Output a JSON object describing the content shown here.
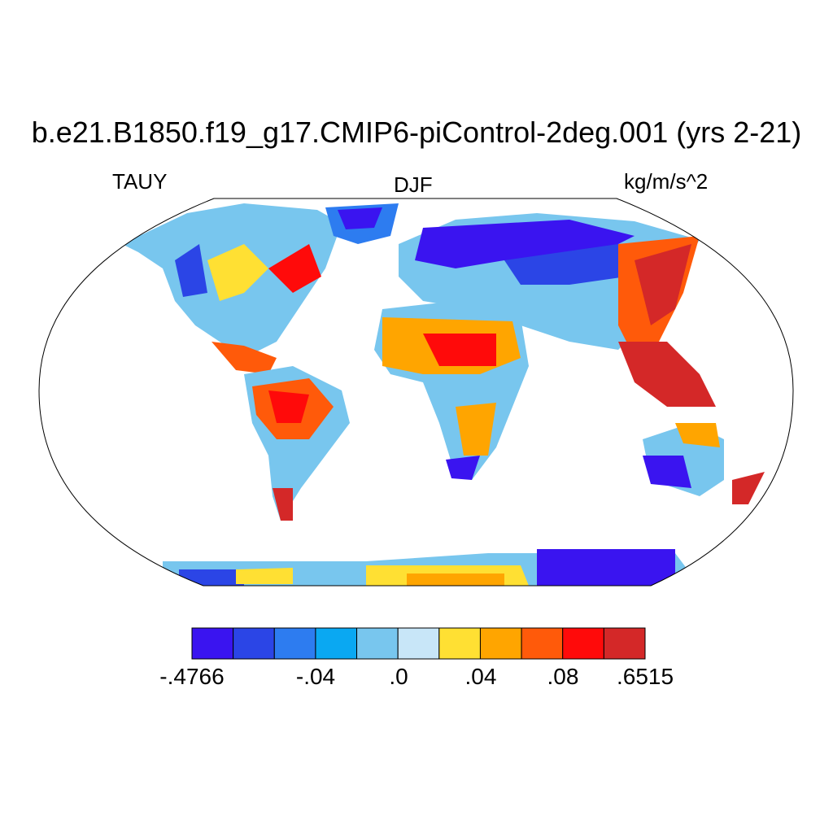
{
  "title": "b.e21.B1850.f19_g17.CMIP6-piControl-2deg.001 (yrs 2-21)",
  "labels": {
    "left": "TAUY",
    "center": "DJF",
    "right": "kg/m/s^2"
  },
  "colorbar": {
    "colors": [
      "#3a14f0",
      "#2b45e6",
      "#2d7cf0",
      "#0aa8f2",
      "#78c6ee",
      "#c8e6f8",
      "#ffe033",
      "#ffa500",
      "#ff5a0a",
      "#ff0a0a",
      "#d42828"
    ],
    "tick_labels": [
      "-.4766",
      "-.04",
      ".0",
      ".04",
      ".08",
      ".6515"
    ]
  }
}
